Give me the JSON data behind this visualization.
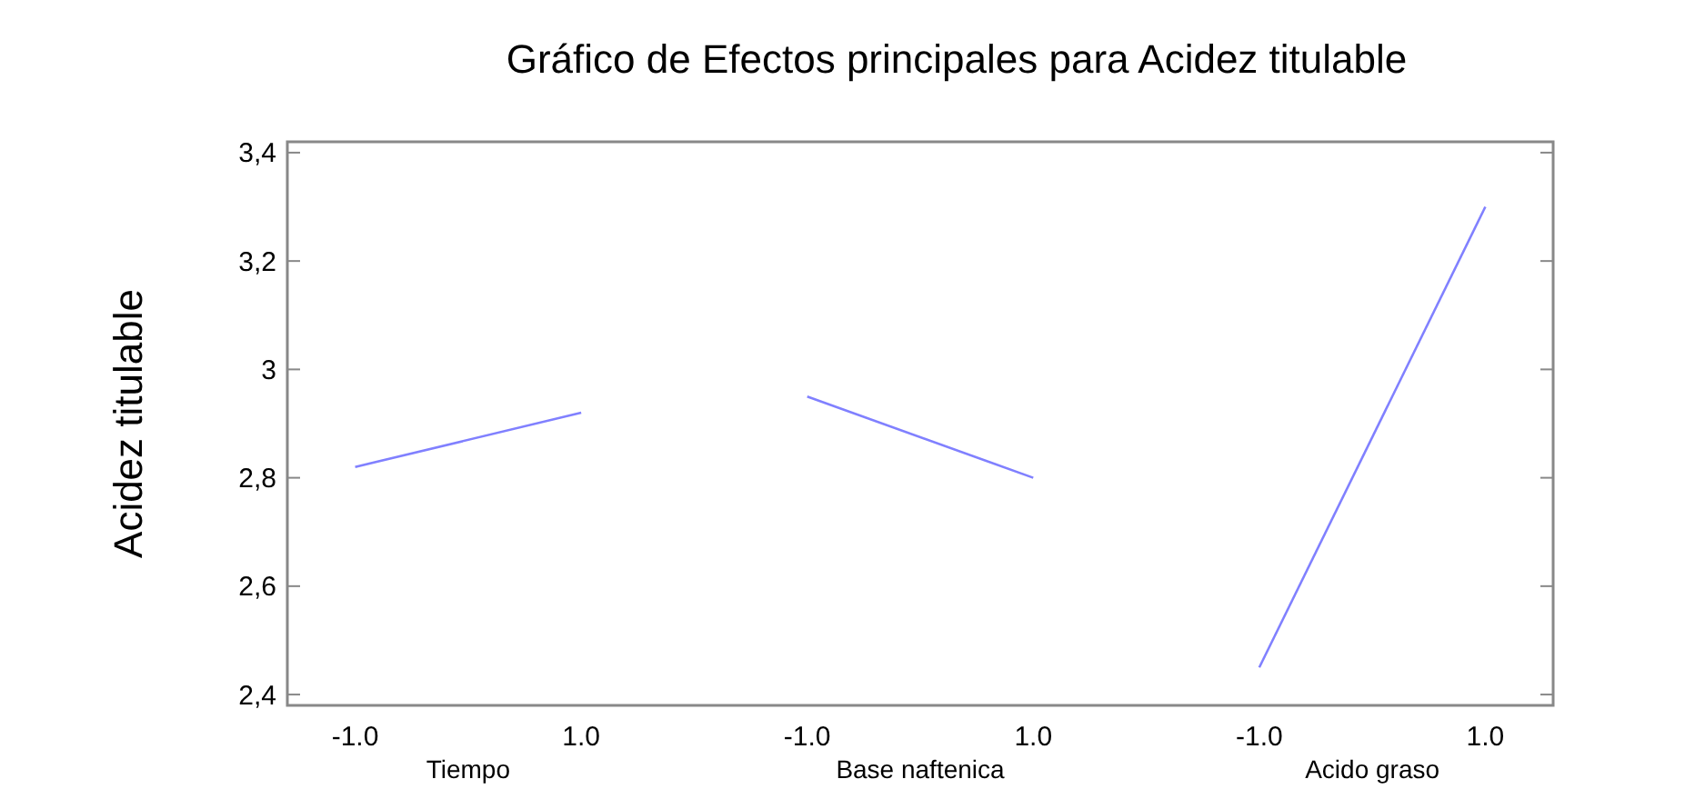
{
  "chart_data": {
    "type": "line",
    "title": "Gráfico de Efectos principales para Acidez titulable",
    "ylabel": "Acidez titulable",
    "categories": [
      "-1.0",
      "1.0",
      "-1.0",
      "1.0",
      "-1.0",
      "1.0"
    ],
    "series": [
      {
        "color": "#8080ff",
        "values": [
          2.82,
          2.92,
          null,
          null,
          null,
          null
        ]
      },
      {
        "color": "#8080ff",
        "values": [
          null,
          null,
          2.95,
          2.8,
          null,
          null
        ]
      },
      {
        "color": "#8080ff",
        "values": [
          null,
          null,
          null,
          null,
          2.45,
          3.3
        ]
      }
    ],
    "ylim": [
      2.38,
      3.42
    ],
    "yticks": [
      {
        "value": 2.4,
        "label": "2,4"
      },
      {
        "value": 2.6,
        "label": "2,6"
      },
      {
        "value": 2.8,
        "label": "2,8"
      },
      {
        "value": 3,
        "label": "3"
      },
      {
        "value": 3.2,
        "label": "3,2"
      },
      {
        "value": 3.4,
        "label": "3,4"
      }
    ],
    "annotations": [
      "Tiempo",
      "Base naftenica",
      "Acido graso"
    ],
    "grid": false,
    "marker": "none",
    "line_style": "solid"
  }
}
